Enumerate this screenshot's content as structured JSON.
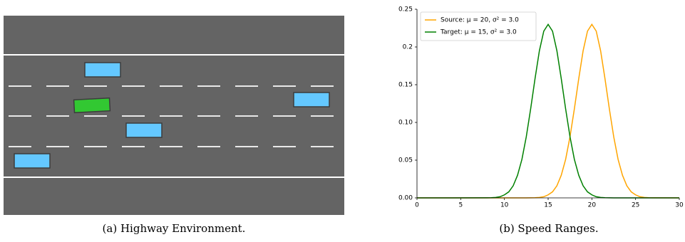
{
  "captions": [
    "(a) Highway Environment.",
    "(b) Speed Ranges."
  ],
  "chart_data": {
    "type": "line",
    "legend": "upper left",
    "x": [
      0,
      8,
      8.5,
      9,
      9.5,
      10,
      10.5,
      11,
      11.5,
      12,
      12.5,
      13,
      13.5,
      14,
      14.5,
      15,
      15.5,
      16,
      16.5,
      17,
      17.5,
      18,
      18.5,
      19,
      19.5,
      20,
      20.5,
      21,
      21.5,
      22,
      22.5,
      23,
      23.5,
      24,
      24.5,
      25,
      25.5,
      26,
      26.5,
      27,
      30
    ],
    "series": [
      {
        "name": "Source: μ = 20, σ² = 3.0",
        "color": "#ffa500",
        "values": [
          0,
          0,
          0,
          0,
          0,
          0,
          0,
          0,
          0,
          0,
          0,
          0.0001,
          0.0002,
          0.0006,
          0.0015,
          0.004,
          0.008,
          0.016,
          0.03,
          0.051,
          0.081,
          0.118,
          0.158,
          0.195,
          0.221,
          0.23,
          0.221,
          0.195,
          0.158,
          0.118,
          0.081,
          0.051,
          0.03,
          0.016,
          0.008,
          0.004,
          0.0015,
          0.0006,
          0.0002,
          0.0001,
          0
        ]
      },
      {
        "name": "Target: μ = 15, σ² = 3.0",
        "color": "#008000",
        "values": [
          0,
          0.0001,
          0.0002,
          0.0006,
          0.0015,
          0.004,
          0.008,
          0.016,
          0.03,
          0.051,
          0.081,
          0.118,
          0.158,
          0.195,
          0.221,
          0.23,
          0.221,
          0.195,
          0.158,
          0.118,
          0.081,
          0.051,
          0.03,
          0.016,
          0.008,
          0.004,
          0.0015,
          0.0006,
          0.0002,
          0.0001,
          0,
          0,
          0,
          0,
          0,
          0,
          0,
          0,
          0,
          0,
          0
        ]
      }
    ],
    "xlim": [
      0,
      30
    ],
    "xticks": [
      0,
      5,
      10,
      15,
      20,
      25,
      30
    ],
    "ylim": [
      0,
      0.25
    ],
    "yticks": [
      {
        "value": 0,
        "label": "0.00"
      },
      0.05,
      {
        "value": 0.1,
        "label": "0.10"
      },
      0.15,
      0.2,
      0.25
    ]
  }
}
